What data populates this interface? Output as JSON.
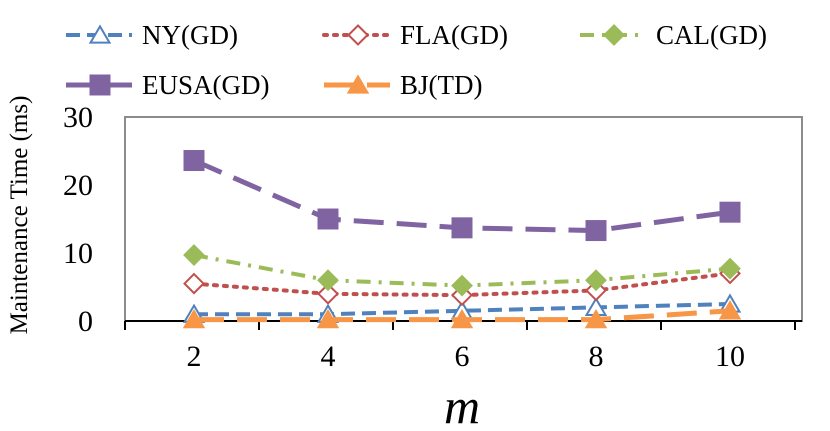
{
  "chart_data": {
    "type": "line",
    "title": "",
    "xlabel": "m",
    "ylabel": "Maintenance Time (ms)",
    "x": [
      2,
      4,
      6,
      8,
      10
    ],
    "ylim": [
      0,
      30
    ],
    "yticks": [
      0,
      10,
      20,
      30
    ],
    "grid": false,
    "legend_position": "top",
    "series": [
      {
        "name": "NY(GD)",
        "values": [
          1.0,
          1.0,
          1.5,
          2.0,
          2.5
        ],
        "color": "#4f81bd",
        "dash": "dash",
        "marker": "triangle-open"
      },
      {
        "name": "FLA(GD)",
        "values": [
          5.5,
          4.0,
          3.8,
          4.5,
          7.0
        ],
        "color": "#c0504d",
        "dash": "dot",
        "marker": "diamond-open"
      },
      {
        "name": "CAL(GD)",
        "values": [
          9.7,
          6.0,
          5.2,
          6.0,
          7.7
        ],
        "color": "#9bbb59",
        "dash": "dashdot",
        "marker": "diamond"
      },
      {
        "name": "EUSA(GD)",
        "values": [
          23.6,
          15.0,
          13.7,
          13.3,
          16.0
        ],
        "color": "#8064a2",
        "dash": "longdash",
        "marker": "square"
      },
      {
        "name": "BJ(TD)",
        "values": [
          0.2,
          0.2,
          0.2,
          0.2,
          1.5
        ],
        "color": "#f79646",
        "dash": "longdash",
        "marker": "triangle"
      }
    ]
  }
}
